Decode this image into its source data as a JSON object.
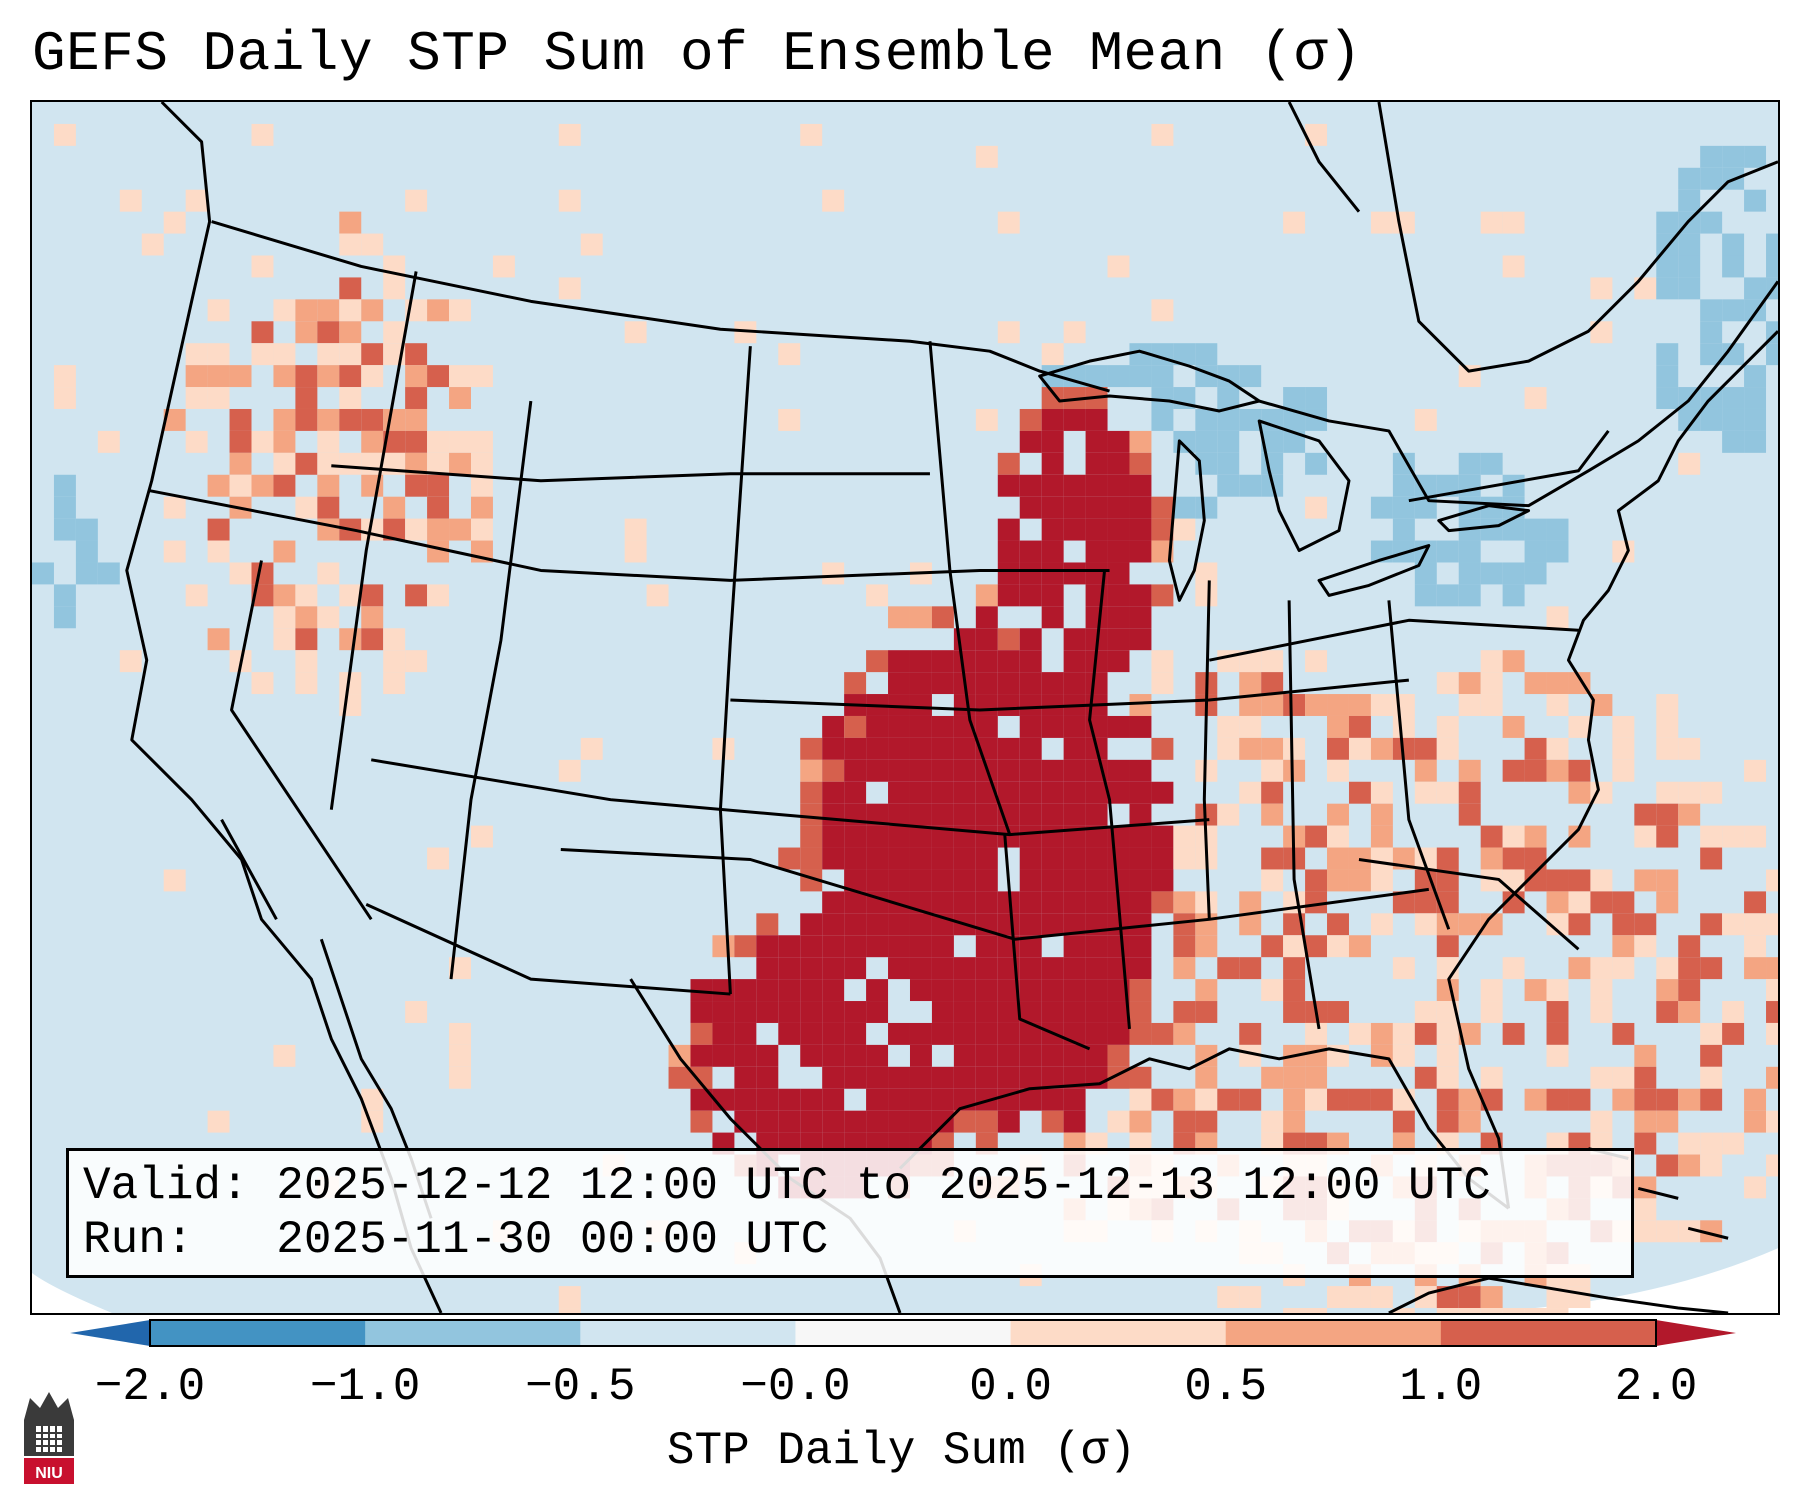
{
  "title": "GEFS Daily STP Sum of Ensemble Mean (σ)",
  "info": {
    "valid_label": "Valid:",
    "valid_text": "2025-12-12 12:00 UTC to 2025-12-13 12:00 UTC",
    "run_label": "Run:",
    "run_text": "2025-11-30 00:00 UTC"
  },
  "colorbar": {
    "label": "STP Daily Sum (σ)",
    "ticks": [
      "−2.0",
      "−1.0",
      "−0.5",
      "−0.0",
      "0.0",
      "0.5",
      "1.0",
      "2.0"
    ],
    "bins": [
      {
        "from": -2.0,
        "to": -1.0,
        "color": "#4393c3"
      },
      {
        "from": -1.0,
        "to": -0.5,
        "color": "#92c5de"
      },
      {
        "from": -0.5,
        "to": -0.0,
        "color": "#d1e5f0"
      },
      {
        "from": -0.0,
        "to": 0.0,
        "color": "#f7f7f7"
      },
      {
        "from": 0.0,
        "to": 0.5,
        "color": "#fddbc7"
      },
      {
        "from": 0.5,
        "to": 1.0,
        "color": "#f4a582"
      },
      {
        "from": 1.0,
        "to": 2.0,
        "color": "#d6604d"
      }
    ],
    "under_color": "#2166ac",
    "over_color": "#b2182b",
    "extend": "both"
  },
  "map": {
    "region": "CONUS",
    "background_value_color": "#d1e5f0",
    "max_anomaly_color": "#b2182b",
    "max_anomaly_region": "Mississippi Valley and Southern Plains"
  },
  "logo": {
    "text": "NIU",
    "colors": {
      "dark": "#3a3a3a",
      "red": "#c8102e"
    }
  }
}
